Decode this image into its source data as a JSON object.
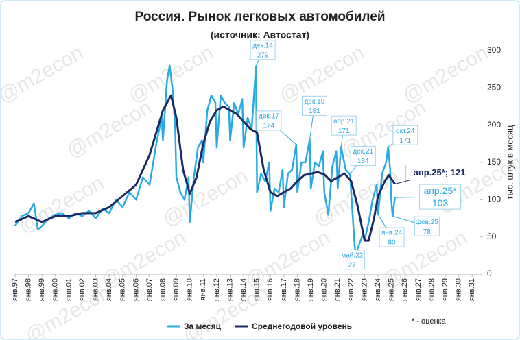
{
  "chart_data": {
    "type": "line",
    "title": "Россия. Рынок легковых автомобилей",
    "subtitle": "(источник: Автостат)",
    "y_label": "тыс. штук в месяц",
    "watermark": "@m2econ",
    "footnote": "* - оценка",
    "xlim": [
      1997,
      2031.6
    ],
    "ylim": [
      0,
      300
    ],
    "yticks": [
      0,
      50,
      100,
      150,
      200,
      250,
      300
    ],
    "xticks": [
      {
        "value": 1997,
        "label": "янв.97"
      },
      {
        "value": 1998,
        "label": "янв.98"
      },
      {
        "value": 1999,
        "label": "янв.99"
      },
      {
        "value": 2000,
        "label": "янв.00"
      },
      {
        "value": 2001,
        "label": "янв.01"
      },
      {
        "value": 2002,
        "label": "янв.02"
      },
      {
        "value": 2003,
        "label": "янв.03"
      },
      {
        "value": 2004,
        "label": "янв.04"
      },
      {
        "value": 2005,
        "label": "янв.05"
      },
      {
        "value": 2006,
        "label": "янв.06"
      },
      {
        "value": 2007,
        "label": "янв.07"
      },
      {
        "value": 2008,
        "label": "янв.08"
      },
      {
        "value": 2009,
        "label": "янв.09"
      },
      {
        "value": 2010,
        "label": "янв.10"
      },
      {
        "value": 2011,
        "label": "янв.11"
      },
      {
        "value": 2012,
        "label": "янв.12"
      },
      {
        "value": 2013,
        "label": "янв.13"
      },
      {
        "value": 2014,
        "label": "янв.14"
      },
      {
        "value": 2015,
        "label": "янв.15"
      },
      {
        "value": 2016,
        "label": "янв.16"
      },
      {
        "value": 2017,
        "label": "янв.17"
      },
      {
        "value": 2018,
        "label": "янв.18"
      },
      {
        "value": 2019,
        "label": "янв.19"
      },
      {
        "value": 2020,
        "label": "янв.20"
      },
      {
        "value": 2021,
        "label": "янв.21"
      },
      {
        "value": 2022,
        "label": "янв.22"
      },
      {
        "value": 2023,
        "label": "янв.23"
      },
      {
        "value": 2024,
        "label": "янв.24"
      },
      {
        "value": 2025,
        "label": "янв.25"
      },
      {
        "value": 2026,
        "label": "янв.26"
      },
      {
        "value": 2027,
        "label": "янв.27"
      },
      {
        "value": 2028,
        "label": "янв.28"
      },
      {
        "value": 2029,
        "label": "янв.29"
      },
      {
        "value": 2030,
        "label": "янв.30"
      },
      {
        "value": 2031,
        "label": "янв.31"
      }
    ],
    "grid": false,
    "series": [
      {
        "name": "За месяц",
        "color": "#29abe2",
        "x": [
          1997.0,
          1997.5,
          1998.0,
          1998.4,
          1998.7,
          1999.0,
          1999.5,
          2000.0,
          2000.5,
          2001.0,
          2001.5,
          2002.0,
          2002.5,
          2003.0,
          2003.5,
          2004.0,
          2004.5,
          2005.0,
          2005.5,
          2006.0,
          2006.5,
          2007.0,
          2007.5,
          2007.9,
          2008.0,
          2008.3,
          2008.5,
          2008.7,
          2008.9,
          2009.0,
          2009.3,
          2009.6,
          2009.9,
          2010.0,
          2010.3,
          2010.6,
          2010.9,
          2011.0,
          2011.3,
          2011.6,
          2011.9,
          2012.0,
          2012.3,
          2012.6,
          2012.9,
          2013.0,
          2013.3,
          2013.6,
          2013.9,
          2014.0,
          2014.3,
          2014.6,
          2014.917,
          2015.0,
          2015.3,
          2015.6,
          2015.9,
          2016.0,
          2016.3,
          2016.6,
          2016.9,
          2017.0,
          2017.3,
          2017.6,
          2017.917,
          2018.0,
          2018.3,
          2018.6,
          2018.917,
          2019.0,
          2019.3,
          2019.6,
          2019.9,
          2020.0,
          2020.3,
          2020.6,
          2020.9,
          2021.0,
          2021.25,
          2021.6,
          2021.917,
          2022.0,
          2022.25,
          2022.33,
          2022.6,
          2022.9,
          2023.0,
          2023.3,
          2023.6,
          2023.9,
          2024.0,
          2024.3,
          2024.6,
          2024.75,
          2024.9,
          2025.0,
          2025.083,
          2025.25
        ],
        "values": [
          65,
          78,
          82,
          95,
          60,
          65,
          75,
          80,
          82,
          75,
          82,
          78,
          85,
          75,
          88,
          82,
          100,
          90,
          110,
          100,
          130,
          120,
          175,
          210,
          180,
          260,
          280,
          250,
          200,
          130,
          110,
          100,
          130,
          70,
          130,
          170,
          180,
          150,
          220,
          240,
          230,
          170,
          240,
          230,
          225,
          180,
          230,
          215,
          235,
          170,
          210,
          195,
          279,
          110,
          135,
          125,
          150,
          85,
          115,
          110,
          140,
          90,
          135,
          140,
          174,
          110,
          150,
          150,
          181,
          115,
          150,
          145,
          165,
          110,
          80,
          145,
          165,
          115,
          171,
          140,
          134,
          110,
          40,
          27,
          40,
          55,
          45,
          70,
          100,
          120,
          80,
          135,
          150,
          171,
          140,
          95,
          78,
          103
        ]
      },
      {
        "name": "Среднегодовой уровень",
        "color": "#1b2a63",
        "x": [
          1997,
          1998,
          1999,
          2000,
          2001,
          2002,
          2003,
          2004,
          2005,
          2006,
          2007,
          2008,
          2008.6,
          2009,
          2009.5,
          2010,
          2010.5,
          2011,
          2011.5,
          2012,
          2012.5,
          2013,
          2013.5,
          2014,
          2014.5,
          2015,
          2015.5,
          2016,
          2016.5,
          2017,
          2017.5,
          2018,
          2018.5,
          2019,
          2019.5,
          2020,
          2020.5,
          2021,
          2021.5,
          2022,
          2022.5,
          2023,
          2023.3,
          2023.7,
          2024,
          2024.5,
          2024.8,
          2025.25
        ],
        "values": [
          70,
          78,
          70,
          78,
          78,
          82,
          82,
          90,
          105,
          120,
          160,
          220,
          240,
          210,
          140,
          108,
          130,
          175,
          205,
          220,
          225,
          220,
          215,
          205,
          195,
          190,
          140,
          110,
          105,
          110,
          115,
          125,
          133,
          135,
          137,
          134,
          125,
          130,
          135,
          125,
          90,
          45,
          45,
          75,
          105,
          125,
          133,
          121
        ]
      }
    ],
    "annotations": [
      {
        "label": "дек.14",
        "value": 279,
        "x": 2014.917
      },
      {
        "label": "дек.17",
        "value": 174,
        "x": 2017.917
      },
      {
        "label": "дек.18",
        "value": 181,
        "x": 2018.917
      },
      {
        "label": "апр.21",
        "value": 171,
        "x": 2021.25
      },
      {
        "label": "дек.21",
        "value": 134,
        "x": 2021.917
      },
      {
        "label": "май.22",
        "value": 27,
        "x": 2022.33
      },
      {
        "label": "янв.24",
        "value": 80,
        "x": 2024.0
      },
      {
        "label": "фев.25",
        "value": 78,
        "x": 2025.083
      },
      {
        "label": "апр.25*",
        "value": 103,
        "x": 2025.25
      },
      {
        "label": "окт.24",
        "value": 171,
        "x": 2024.75
      },
      {
        "text": "апр.25*; 121",
        "value": 121,
        "x": 2025.25
      }
    ]
  }
}
